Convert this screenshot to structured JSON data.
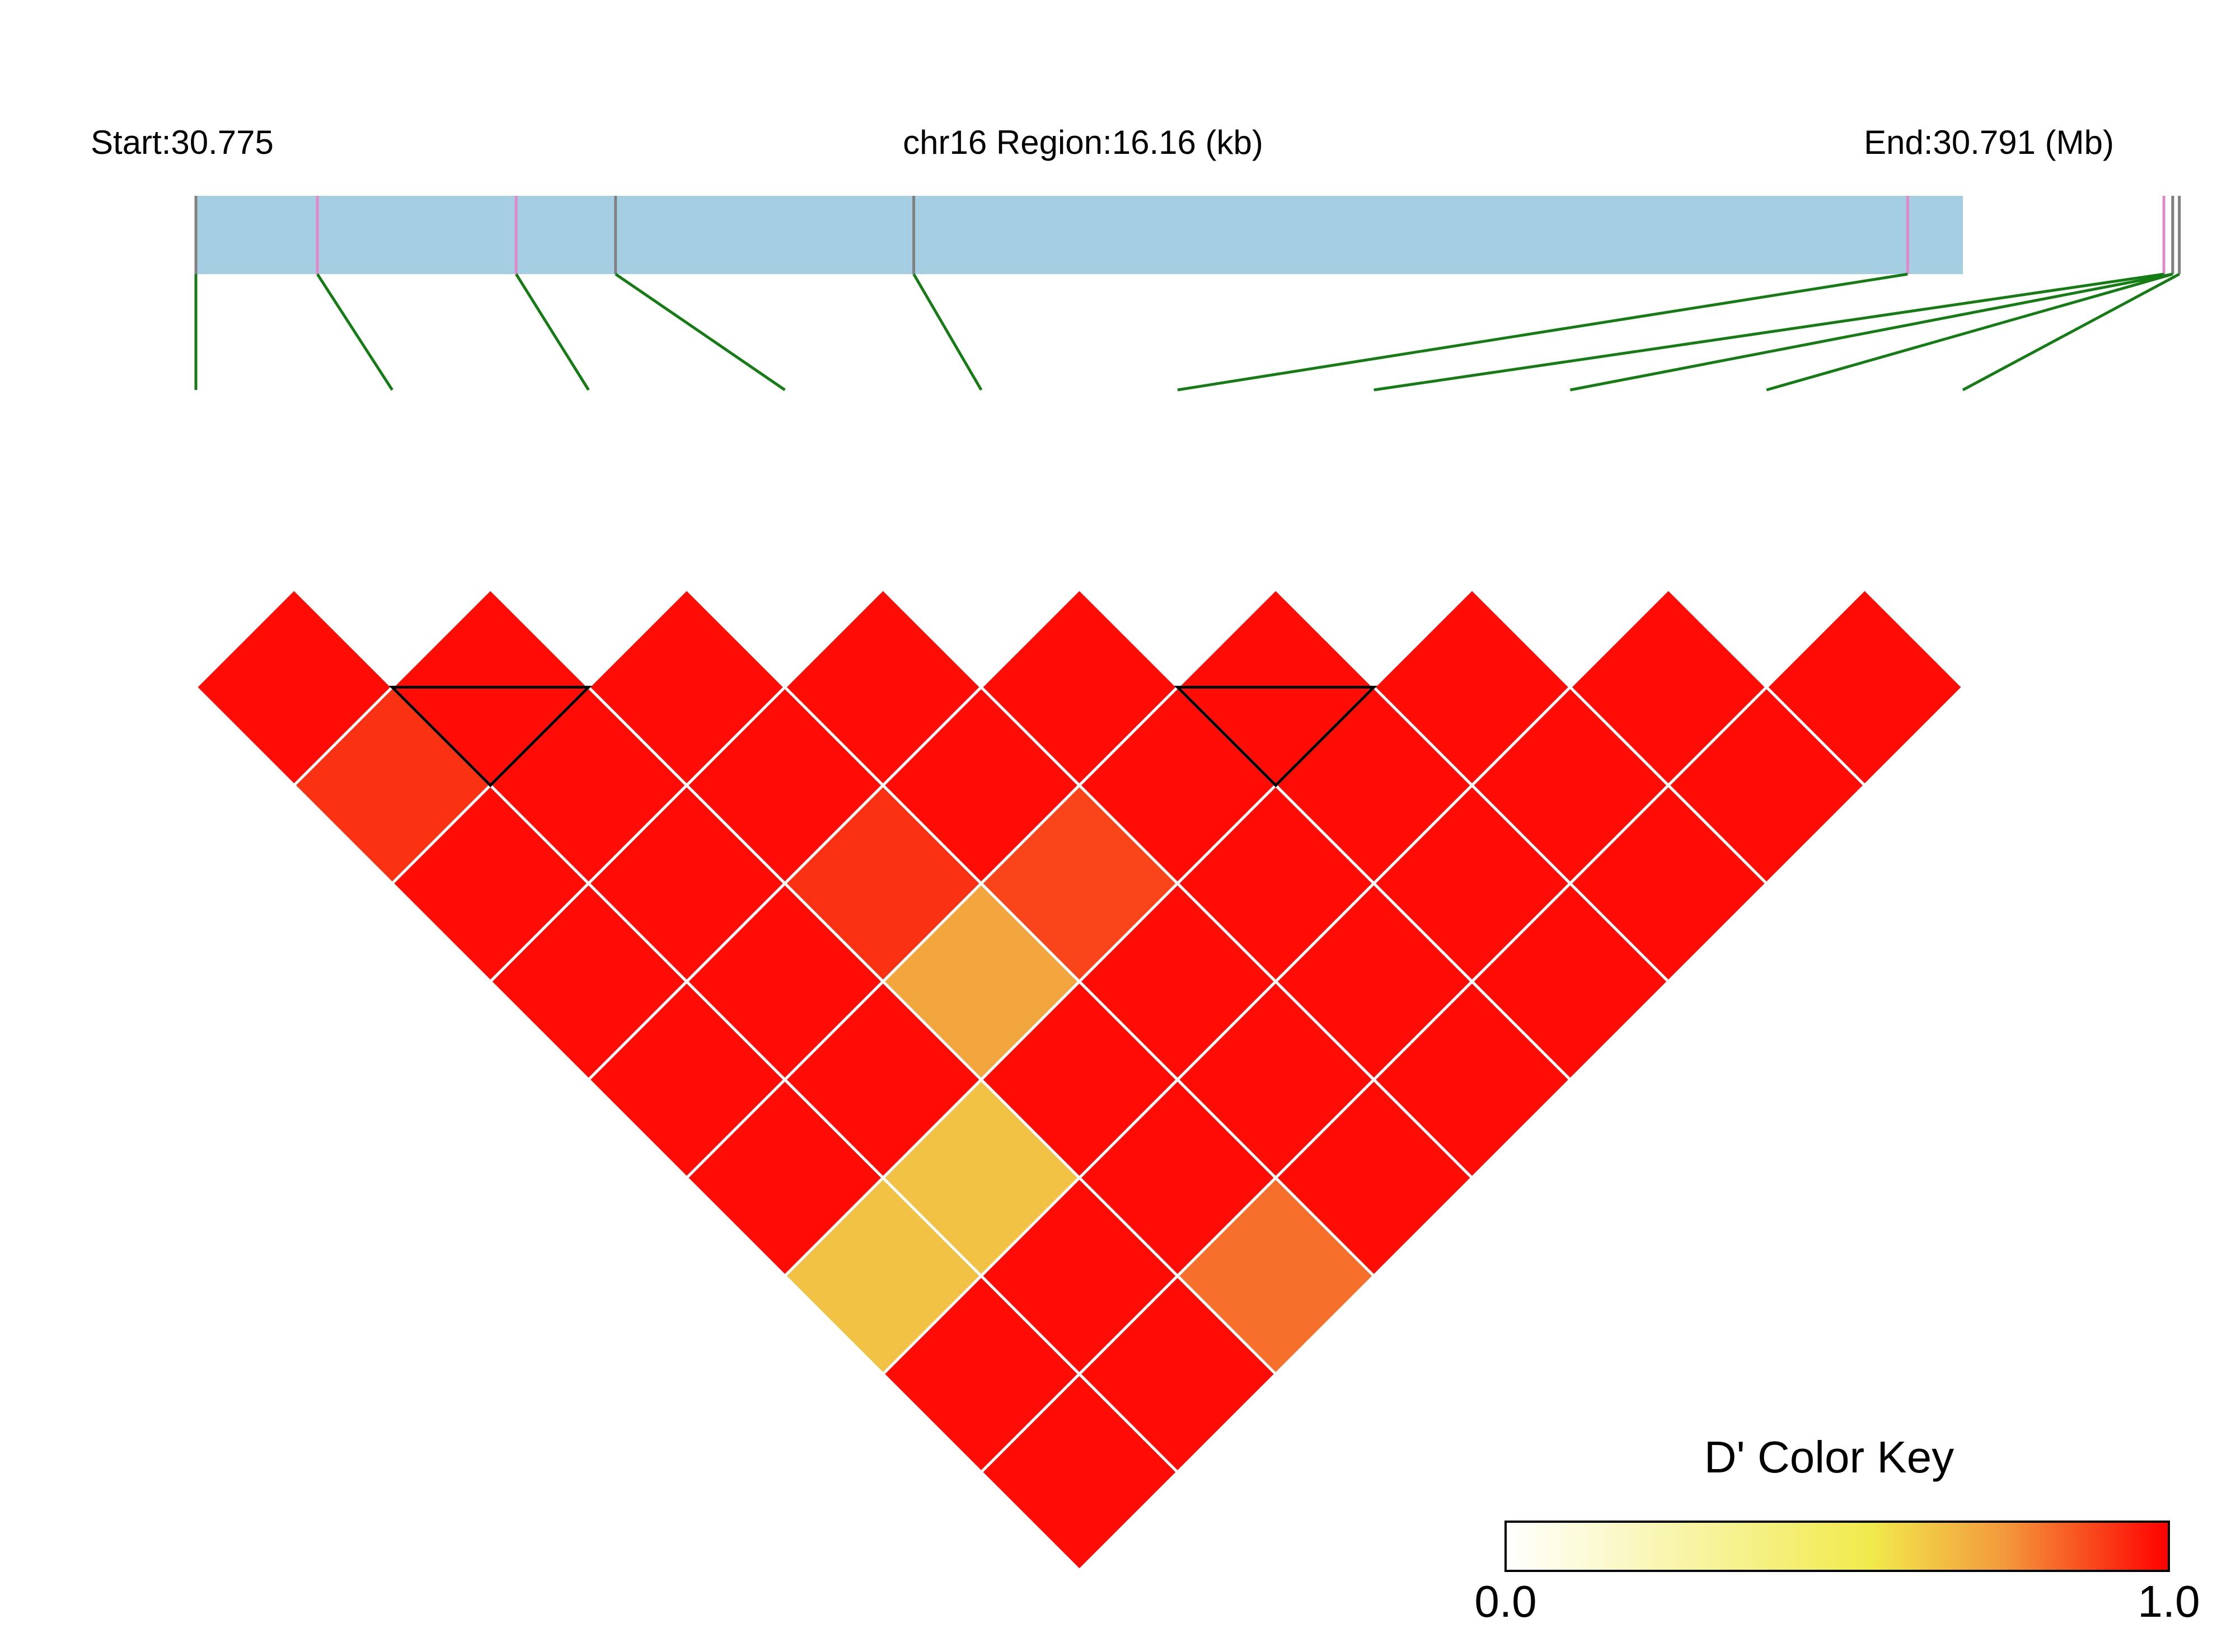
{
  "chart_data": {
    "type": "heatmap",
    "subtype": "ld-triangle",
    "header": {
      "start_label": "Start:30.775",
      "region_label": "chr16 Region:16.16 (kb)",
      "end_label": "End:30.791 (Mb)"
    },
    "region": {
      "start_mb": 30.775,
      "end_mb": 30.791,
      "length_kb": 16.16
    },
    "snp_positions_mb": [
      30.775,
      30.7761,
      30.7779,
      30.7788,
      30.7815,
      30.7905,
      30.79282,
      30.7929,
      30.7929,
      30.79296
    ],
    "snp_tick_colors": [
      "#808080",
      "#e088c8",
      "#e088c8",
      "#808080",
      "#808080",
      "#e088c8",
      "#e088c8",
      "#808080",
      "#808080",
      "#808080"
    ],
    "n_snps": 10,
    "ld_dprime": [
      [
        0.98,
        0.98,
        0.98,
        0.98,
        0.98,
        0.98,
        0.98,
        0.98,
        0.98
      ],
      [
        0.92,
        0.98,
        0.98,
        0.98,
        0.98,
        0.98,
        0.98,
        0.98
      ],
      [
        0.98,
        0.98,
        0.92,
        0.89,
        0.98,
        0.98,
        0.98
      ],
      [
        0.98,
        0.98,
        0.72,
        0.98,
        0.98,
        0.98
      ],
      [
        0.98,
        0.98,
        0.98,
        0.98,
        0.98
      ],
      [
        0.98,
        0.65,
        0.98,
        0.98
      ],
      [
        0.65,
        0.98,
        0.82
      ],
      [
        0.98,
        0.98
      ],
      [
        0.98
      ]
    ],
    "ld_blocks": [
      [
        2,
        3
      ],
      [
        6,
        7
      ]
    ],
    "color_key": {
      "title": "D' Color Key",
      "min_label": "0.0",
      "max_label": "1.0",
      "range": [
        0.0,
        1.0
      ],
      "gradient_colors": [
        "#ffffff",
        "#f1ea4c",
        "#f39a3c",
        "#ff0000"
      ]
    },
    "colors": {
      "region_bar": "#a6cee3",
      "connector_lines": "#137d13",
      "block_outline": "#000000",
      "cell_border": "#ffffff"
    }
  }
}
